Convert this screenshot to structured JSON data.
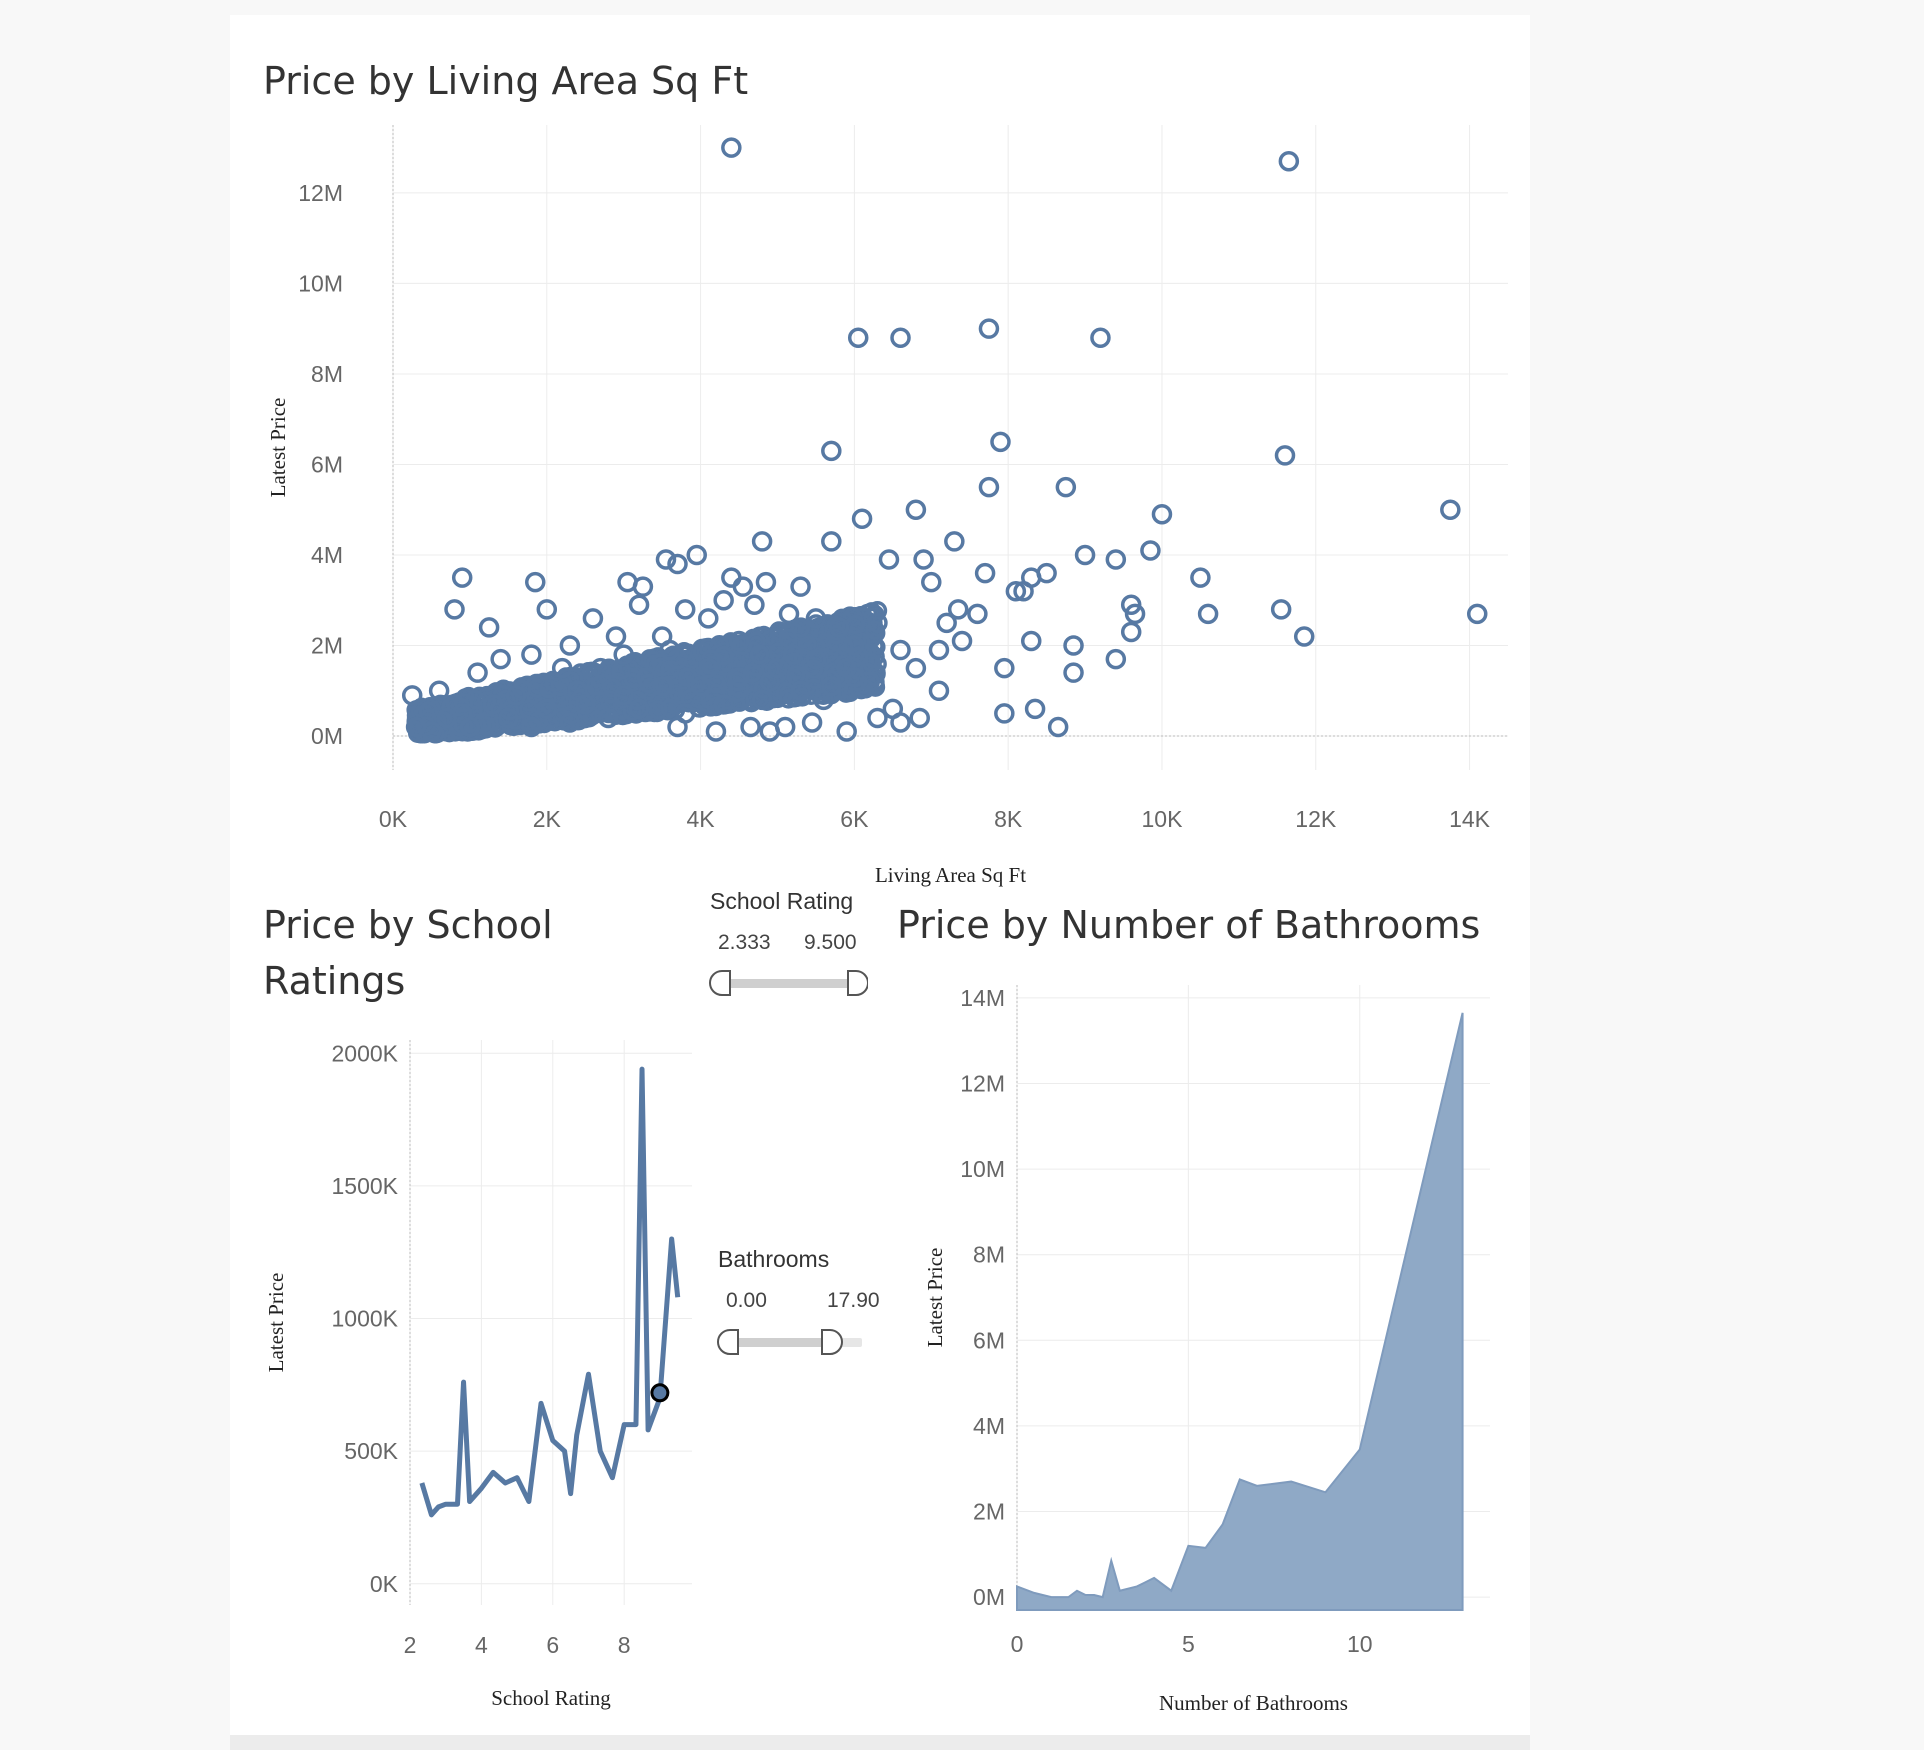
{
  "dashboard": {
    "scatter_title": "Price by Living Area Sq Ft",
    "school_title_line1": "Price by School",
    "school_title_line2": "Ratings",
    "bath_title": "Price by Number of  Bathrooms"
  },
  "filters": {
    "school": {
      "title": "School Rating",
      "min_label": "2.333",
      "max_label": "9.500",
      "min": 2.333,
      "max": 9.5,
      "range": [
        2.333,
        9.5
      ]
    },
    "bathrooms": {
      "title": "Bathrooms",
      "min_label": "0.00",
      "max_label": "17.90",
      "min": 0,
      "max": 17.9,
      "range": [
        0,
        17.9
      ]
    }
  },
  "colors": {
    "mark": "#4e79a7",
    "mark_line": "#5779a3",
    "area_fill": "#8fa9c6",
    "highlight": "#000000"
  },
  "chart_data": [
    {
      "type": "scatter",
      "title": "Price by Living Area Sq Ft",
      "xlabel": "Living Area Sq Ft",
      "ylabel": "Latest Price",
      "xlim": [
        0,
        14500
      ],
      "ylim": [
        -750000,
        13500000
      ],
      "x_ticks": [
        0,
        2000,
        4000,
        6000,
        8000,
        10000,
        12000,
        14000
      ],
      "x_tick_labels": [
        "0K",
        "2K",
        "4K",
        "6K",
        "8K",
        "10K",
        "12K",
        "14K"
      ],
      "y_ticks": [
        0,
        2000000,
        4000000,
        6000000,
        8000000,
        10000000,
        12000000
      ],
      "y_tick_labels": [
        "0M",
        "2M",
        "4M",
        "6M",
        "8M",
        "10M",
        "12M"
      ],
      "marker": "open-circle",
      "grid": true,
      "points": [
        [
          4400,
          13000000
        ],
        [
          11650,
          12700000
        ],
        [
          6050,
          8800000
        ],
        [
          6600,
          8800000
        ],
        [
          7750,
          9000000
        ],
        [
          9200,
          8800000
        ],
        [
          5700,
          6300000
        ],
        [
          7900,
          6500000
        ],
        [
          11600,
          6200000
        ],
        [
          7750,
          5500000
        ],
        [
          8750,
          5500000
        ],
        [
          6800,
          5000000
        ],
        [
          10000,
          4900000
        ],
        [
          13750,
          5000000
        ],
        [
          6100,
          4800000
        ],
        [
          4800,
          4300000
        ],
        [
          5700,
          4300000
        ],
        [
          7300,
          4300000
        ],
        [
          9000,
          4000000
        ],
        [
          9850,
          4100000
        ],
        [
          9400,
          3900000
        ],
        [
          3550,
          3900000
        ],
        [
          3950,
          4000000
        ],
        [
          3700,
          3800000
        ],
        [
          4400,
          3500000
        ],
        [
          6450,
          3900000
        ],
        [
          6900,
          3900000
        ],
        [
          7700,
          3600000
        ],
        [
          8500,
          3600000
        ],
        [
          8300,
          3500000
        ],
        [
          10500,
          3500000
        ],
        [
          900,
          3500000
        ],
        [
          1850,
          3400000
        ],
        [
          800,
          2800000
        ],
        [
          1250,
          2400000
        ],
        [
          2000,
          2800000
        ],
        [
          3050,
          3400000
        ],
        [
          3250,
          3300000
        ],
        [
          4550,
          3300000
        ],
        [
          4850,
          3400000
        ],
        [
          5300,
          3300000
        ],
        [
          7000,
          3400000
        ],
        [
          8100,
          3200000
        ],
        [
          8200,
          3200000
        ],
        [
          9600,
          2900000
        ],
        [
          9650,
          2700000
        ],
        [
          10600,
          2700000
        ],
        [
          11550,
          2800000
        ],
        [
          14100,
          2700000
        ],
        [
          11850,
          2200000
        ],
        [
          9600,
          2300000
        ],
        [
          8850,
          2000000
        ],
        [
          9400,
          1700000
        ],
        [
          8850,
          1400000
        ],
        [
          7950,
          1500000
        ],
        [
          8300,
          2100000
        ],
        [
          7400,
          2100000
        ],
        [
          7100,
          1900000
        ],
        [
          7100,
          1000000
        ],
        [
          6850,
          400000
        ],
        [
          6600,
          300000
        ],
        [
          6500,
          600000
        ],
        [
          7950,
          500000
        ],
        [
          8350,
          600000
        ],
        [
          8650,
          200000
        ],
        [
          6300,
          400000
        ],
        [
          5900,
          100000
        ],
        [
          5450,
          300000
        ],
        [
          5100,
          200000
        ],
        [
          4900,
          100000
        ],
        [
          4650,
          200000
        ],
        [
          4200,
          100000
        ],
        [
          3700,
          200000
        ],
        [
          2300,
          300000
        ],
        [
          1800,
          200000
        ],
        [
          1000,
          200000
        ],
        [
          500,
          100000
        ],
        [
          300,
          200000
        ],
        [
          250,
          900000
        ],
        [
          600,
          1000000
        ],
        [
          1100,
          1400000
        ],
        [
          1400,
          1700000
        ],
        [
          1800,
          1800000
        ],
        [
          2300,
          2000000
        ],
        [
          2600,
          2600000
        ],
        [
          3200,
          2900000
        ],
        [
          3500,
          2200000
        ],
        [
          3800,
          2800000
        ],
        [
          4100,
          2600000
        ],
        [
          4300,
          3000000
        ],
        [
          4700,
          2900000
        ],
        [
          5150,
          2700000
        ],
        [
          5500,
          2600000
        ],
        [
          5800,
          2400000
        ],
        [
          6000,
          2000000
        ],
        [
          6300,
          2500000
        ],
        [
          6600,
          1900000
        ],
        [
          6800,
          1500000
        ],
        [
          7200,
          2500000
        ],
        [
          7600,
          2700000
        ],
        [
          7350,
          2800000
        ],
        [
          6200,
          1200000
        ],
        [
          5900,
          1500000
        ],
        [
          5600,
          800000
        ],
        [
          5200,
          1800000
        ],
        [
          4900,
          1200000
        ],
        [
          4500,
          2100000
        ],
        [
          4100,
          1500000
        ],
        [
          3700,
          1700000
        ],
        [
          3300,
          1300000
        ],
        [
          3000,
          1800000
        ],
        [
          2700,
          1500000
        ],
        [
          2400,
          1000000
        ],
        [
          2100,
          1200000
        ],
        [
          1600,
          900000
        ],
        [
          1300,
          700000
        ],
        [
          900,
          500000
        ],
        [
          700,
          400000
        ],
        [
          1500,
          400000
        ],
        [
          2000,
          600000
        ],
        [
          2500,
          700000
        ],
        [
          3000,
          900000
        ],
        [
          3500,
          1100000
        ],
        [
          4000,
          1100000
        ],
        [
          4500,
          1300000
        ],
        [
          5000,
          1500000
        ],
        [
          5500,
          1700000
        ],
        [
          6000,
          1300000
        ],
        [
          3200,
          600000
        ],
        [
          2800,
          400000
        ],
        [
          3800,
          500000
        ],
        [
          4300,
          700000
        ],
        [
          4800,
          800000
        ],
        [
          5300,
          1000000
        ],
        [
          5700,
          1100000
        ],
        [
          2200,
          1500000
        ],
        [
          2900,
          2200000
        ],
        [
          3600,
          1900000
        ]
      ],
      "dense_regions": [
        {
          "x_from": 300,
          "x_to": 6300,
          "y_at_x_from": 300000,
          "y_at_x_to": 1900000,
          "band": 1100000,
          "count": 1700
        }
      ]
    },
    {
      "type": "line",
      "title": "Price by School Ratings",
      "xlabel": "School Rating",
      "ylabel": "Latest Price",
      "xlim": [
        2,
        9.9
      ],
      "ylim": [
        -80000,
        2050000
      ],
      "x_ticks": [
        2,
        4,
        6,
        8
      ],
      "x_tick_labels": [
        "2",
        "4",
        "6",
        "8"
      ],
      "y_ticks": [
        0,
        500000,
        1000000,
        1500000,
        2000000
      ],
      "y_tick_labels": [
        "0K",
        "500K",
        "1000K",
        "1500K",
        "2000K"
      ],
      "grid": true,
      "x": [
        2.333,
        2.6,
        2.8,
        3.0,
        3.33,
        3.5,
        3.67,
        4.0,
        4.33,
        4.67,
        5.0,
        5.33,
        5.67,
        6.0,
        6.33,
        6.5,
        6.67,
        7.0,
        7.33,
        7.67,
        8.0,
        8.33,
        8.5,
        8.67,
        9.0,
        9.33,
        9.5
      ],
      "values": [
        380000,
        260000,
        290000,
        300000,
        300000,
        760000,
        310000,
        360000,
        420000,
        380000,
        400000,
        310000,
        680000,
        540000,
        500000,
        340000,
        560000,
        790000,
        500000,
        400000,
        600000,
        600000,
        1940000,
        580000,
        700000,
        1300000,
        1080000
      ],
      "highlight": {
        "x": 9.0,
        "y": 720000
      }
    },
    {
      "type": "area",
      "title": "Price by Number of  Bathrooms",
      "xlabel": "Number of Bathrooms",
      "ylabel": "Latest Price",
      "xlim": [
        0,
        13.8
      ],
      "ylim": [
        -300000,
        14300000
      ],
      "x_ticks": [
        0,
        5,
        10
      ],
      "x_tick_labels": [
        "0",
        "5",
        "10"
      ],
      "y_ticks": [
        0,
        2000000,
        4000000,
        6000000,
        8000000,
        10000000,
        12000000,
        14000000
      ],
      "y_tick_labels": [
        "0M",
        "2M",
        "4M",
        "6M",
        "8M",
        "10M",
        "12M",
        "14M"
      ],
      "grid": true,
      "x": [
        0,
        0.5,
        1,
        1.5,
        1.75,
        2,
        2.25,
        2.5,
        2.75,
        3,
        3.5,
        4,
        4.5,
        5,
        5.5,
        6,
        6.5,
        7,
        8,
        9,
        10,
        13
      ],
      "values": [
        250000,
        100000,
        0,
        0,
        150000,
        50000,
        50000,
        0,
        850000,
        150000,
        250000,
        450000,
        150000,
        1200000,
        1150000,
        1700000,
        2750000,
        2600000,
        2700000,
        2450000,
        3450000,
        13650000
      ]
    }
  ]
}
